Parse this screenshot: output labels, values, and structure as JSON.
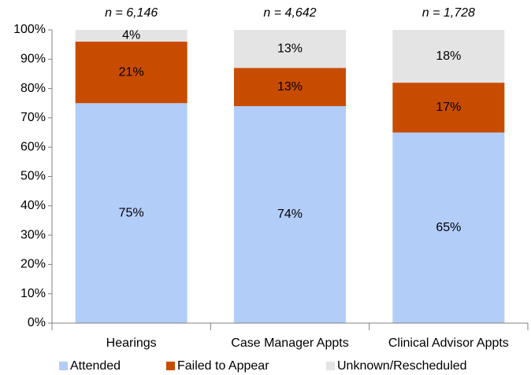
{
  "chart_data": {
    "type": "stacked_bar",
    "categories": [
      "Hearings",
      "Case Manager Appts",
      "Clinical Advisor Appts"
    ],
    "annotations": [
      "n = 6,146",
      "n = 4,642",
      "n = 1,728"
    ],
    "series": [
      {
        "name": "Attended",
        "color": "#b3cdf9",
        "label_color": "#1f3d99",
        "values": [
          75,
          74,
          65
        ],
        "value_labels": [
          "75%",
          "74%",
          "65%"
        ]
      },
      {
        "name": "Failed to Appear",
        "color": "#c84c00",
        "label_color": "#ffffff",
        "values": [
          21,
          13,
          17
        ],
        "value_labels": [
          "21%",
          "13%",
          "17%"
        ]
      },
      {
        "name": "Unknown/Rescheduled",
        "color": "#e4e4e4",
        "label_color": "#1f3d99",
        "values": [
          4,
          13,
          18
        ],
        "value_labels": [
          "4%",
          "13%",
          "18%"
        ]
      }
    ],
    "ylim": [
      0,
      100
    ],
    "yticks": [
      {
        "value": 0,
        "label": "0%"
      },
      {
        "value": 10,
        "label": "10%"
      },
      {
        "value": 20,
        "label": "20%"
      },
      {
        "value": 30,
        "label": "30%"
      },
      {
        "value": 40,
        "label": "40%"
      },
      {
        "value": 50,
        "label": "50%"
      },
      {
        "value": 60,
        "label": "60%"
      },
      {
        "value": 70,
        "label": "70%"
      },
      {
        "value": 80,
        "label": "80%"
      },
      {
        "value": 90,
        "label": "90%"
      },
      {
        "value": 100,
        "label": "100%"
      }
    ],
    "grid": false
  }
}
